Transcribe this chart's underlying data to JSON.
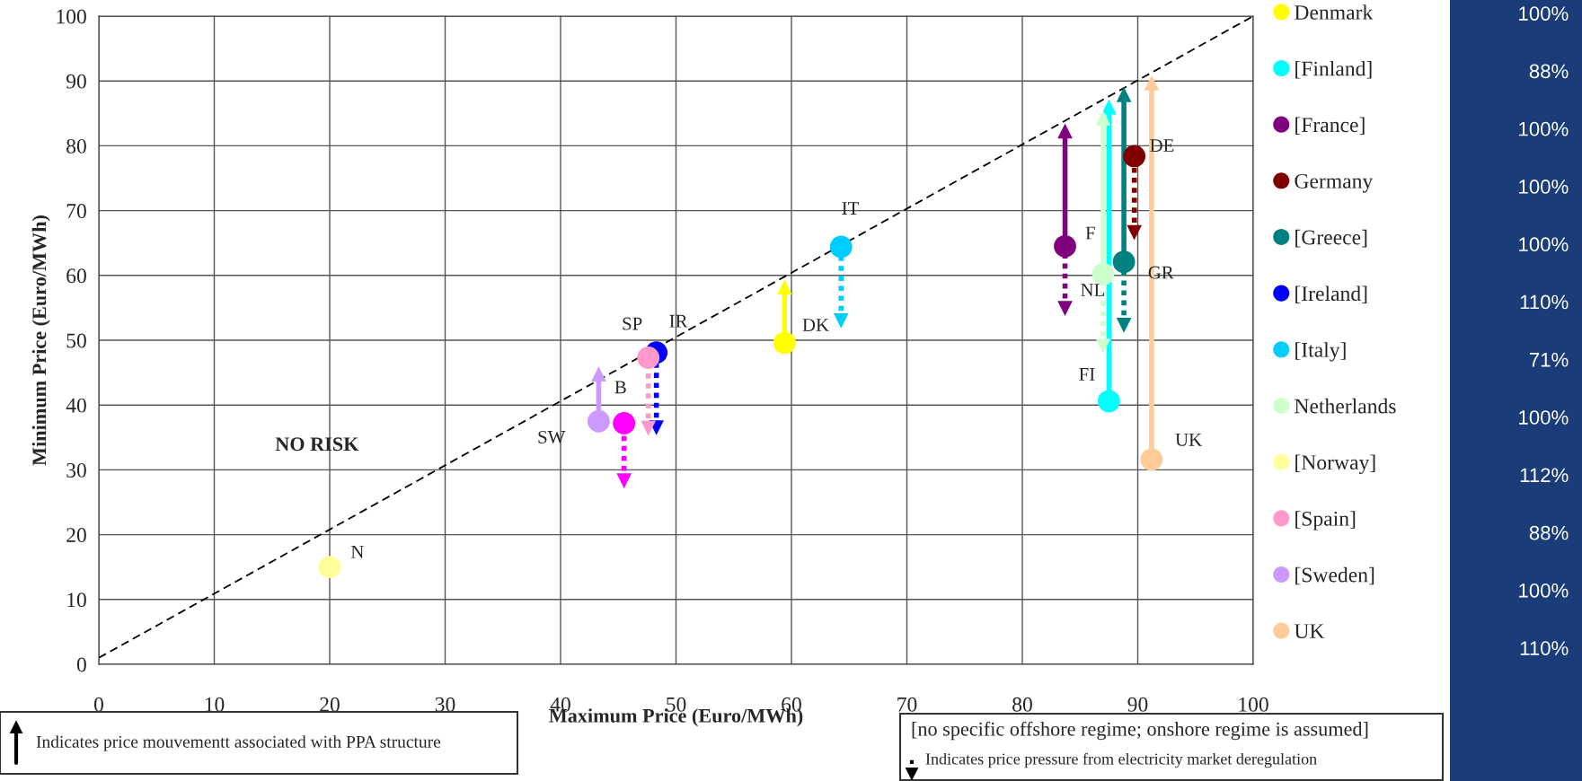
{
  "chart_data": [
    {
      "type": "scatter",
      "xlabel": "Maximum Price (Euro/MWh)",
      "ylabel": "Minimum Price (Euro/MWh)",
      "xlim": [
        0,
        100
      ],
      "ylim": [
        0,
        100
      ],
      "xticks": [
        0,
        10,
        20,
        30,
        40,
        50,
        60,
        70,
        80,
        90,
        100
      ],
      "yticks": [
        0,
        10,
        20,
        30,
        40,
        50,
        60,
        70,
        80,
        90,
        100
      ],
      "grid": true,
      "legend": "right",
      "marker": "circle",
      "series": [
        {
          "name": "Denmark",
          "color": "#ffff00",
          "x": [
            59.4
          ],
          "values": [
            49.6
          ],
          "errors": [
            [
              49.6,
              58.2
            ]
          ]
        },
        {
          "name": "[Finland]",
          "color": "#00ffff",
          "x": [
            87.5
          ],
          "values": [
            40.6
          ],
          "errors": [
            [
              40.6,
              86
            ]
          ]
        },
        {
          "name": "[France]",
          "color": "#800080",
          "x": [
            83.7
          ],
          "values": [
            64.5
          ],
          "errors": [
            [
              54.9,
              82.3
            ]
          ]
        },
        {
          "name": "Germany",
          "color": "#800000",
          "x": [
            89.7
          ],
          "values": [
            78.4
          ],
          "errors": [
            [
              66.6,
              78.4
            ]
          ]
        },
        {
          "name": "[Greece]",
          "color": "#008080",
          "x": [
            88.8
          ],
          "values": [
            62.1
          ],
          "errors": [
            [
              52.3,
              87.9
            ]
          ]
        },
        {
          "name": "[Ireland]",
          "color": "#0000ff",
          "x": [
            48.3
          ],
          "values": [
            48.1
          ],
          "errors": [
            [
              36.5,
              48.1
            ]
          ]
        },
        {
          "name": "[Italy]",
          "color": "#00ccff",
          "x": [
            64.3
          ],
          "values": [
            64.4
          ],
          "errors": [
            [
              53,
              64.4
            ]
          ]
        },
        {
          "name": "Netherlands",
          "color": "#ccffcc",
          "x": [
            87
          ],
          "values": [
            60.2
          ],
          "errors": [
            [
              49.1,
              84.3
            ]
          ]
        },
        {
          "name": "[Norway]",
          "color": "#ffff99",
          "x": [
            20
          ],
          "values": [
            15
          ],
          "errors": [
            null
          ]
        },
        {
          "name": "[Spain]",
          "color": "#ff99cc",
          "x": [
            47.6
          ],
          "values": [
            47.3
          ],
          "errors": [
            [
              36.4,
              47.3
            ]
          ]
        },
        {
          "name": "[Sweden]",
          "color": "#cc99ff",
          "x": [
            43.3
          ],
          "values": [
            37.5
          ],
          "errors": [
            [
              37.5,
              44.8
            ]
          ]
        },
        {
          "name": "UK",
          "color": "#ffcc99",
          "x": [
            91.2
          ],
          "values": [
            31.6
          ],
          "errors": [
            [
              31.6,
              89.7
            ]
          ]
        },
        {
          "color": "#ff00ff",
          "x": [
            45.5
          ],
          "values": [
            37.2
          ],
          "errors": [
            [
              28.3,
              37.2
            ]
          ]
        },
        {
          "type": "line",
          "color": "#000000",
          "marker": "none",
          "line_style": "dashed",
          "x": [
            0,
            100
          ],
          "values": [
            1,
            100
          ]
        }
      ],
      "annotations": [
        {
          "text": "N",
          "x": 20,
          "y": 15
        },
        {
          "text": "SW",
          "x": 43.3,
          "y": 37.5
        },
        {
          "text": "B",
          "x": 45.5,
          "y": 37.2
        },
        {
          "text": "SP",
          "x": 47.6,
          "y": 47.3
        },
        {
          "text": "IR",
          "x": 48.3,
          "y": 48.1
        },
        {
          "text": "DK",
          "x": 59.4,
          "y": 49.6
        },
        {
          "text": "IT",
          "x": 64.3,
          "y": 64.4
        },
        {
          "text": "F",
          "x": 83.7,
          "y": 64.5
        },
        {
          "text": "NL",
          "x": 87,
          "y": 60.2
        },
        {
          "text": "FI",
          "x": 87.5,
          "y": 40.6
        },
        {
          "text": "GR",
          "x": 88.8,
          "y": 62.1
        },
        {
          "text": "DE",
          "x": 89.7,
          "y": 78.4
        },
        {
          "text": "UK",
          "x": 91.2,
          "y": 31.6
        },
        "NO RISK",
        "Indicates price mouvementt associated with PPA structure",
        "[no specific offshore regime; onshore regime is assumed]",
        "Indicates price pressure from electricity market deregulation"
      ]
    },
    {
      "type": "other",
      "annotations": [
        "100%",
        "88%",
        "100%",
        "100%",
        "100%",
        "110%",
        "71%",
        "100%",
        "112%",
        "88%",
        "100%",
        "110%"
      ]
    }
  ]
}
